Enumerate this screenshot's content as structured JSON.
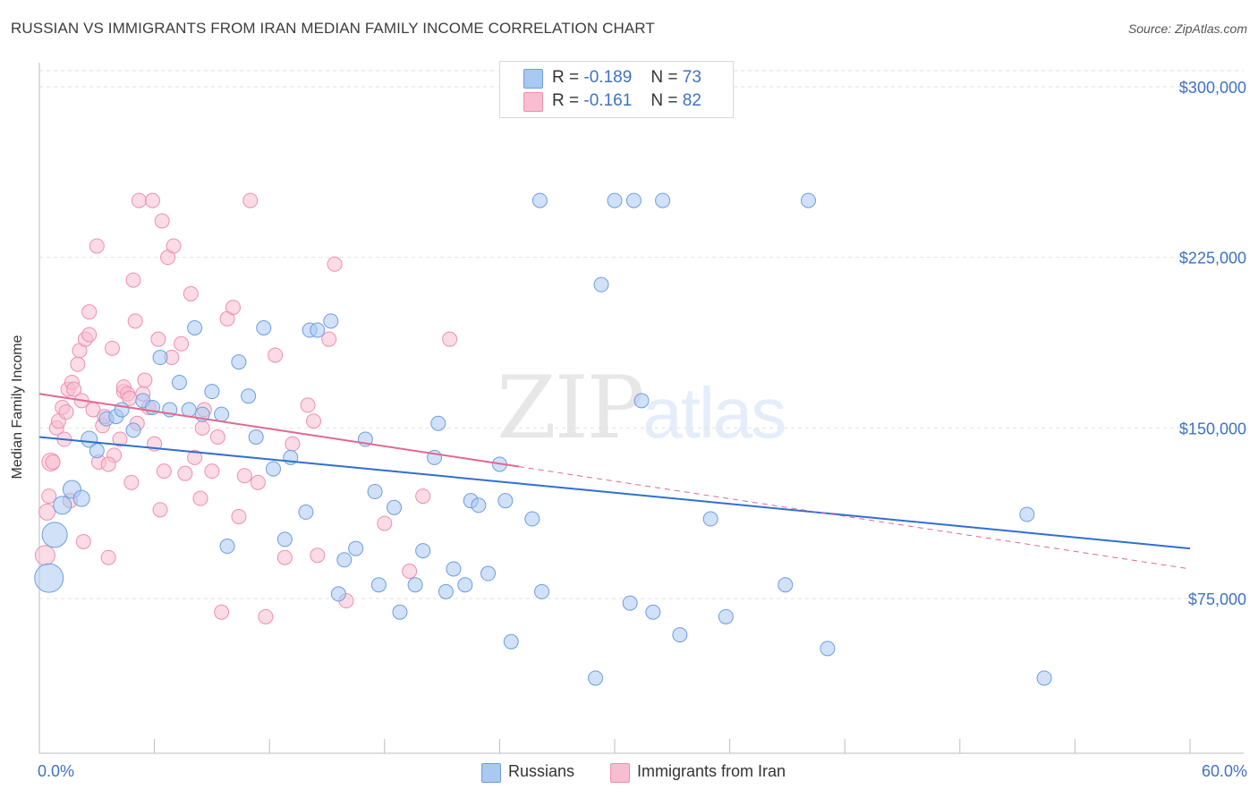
{
  "title": "RUSSIAN VS IMMIGRANTS FROM IRAN MEDIAN FAMILY INCOME CORRELATION CHART",
  "source": "Source: ZipAtlas.com",
  "watermark": {
    "zip": "ZIP",
    "atlas": "atlas"
  },
  "legend_top": [
    {
      "r_label": "R =",
      "r_value": "-0.189",
      "n_label": "N =",
      "n_value": "73"
    },
    {
      "r_label": "R =",
      "r_value": "-0.161",
      "n_label": "N =",
      "n_value": "82"
    }
  ],
  "legend_bottom": [
    "Russians",
    "Immigrants from Iran"
  ],
  "x_axis_labels": {
    "min": "0.0%",
    "max": "60.0%"
  },
  "colors": {
    "russians_fill": "#a9c8f2",
    "russians_stroke": "#6d9ee0",
    "russians_line": "#2f6fd0",
    "iran_fill": "#f8bdd0",
    "iran_stroke": "#ee8fb0",
    "iran_line": "#e3678f",
    "tick_label": "#3f72c3",
    "grid": "#e2e2e2"
  },
  "chart_data": {
    "type": "scatter",
    "title": "RUSSIAN VS IMMIGRANTS FROM IRAN MEDIAN FAMILY INCOME CORRELATION CHART",
    "xlabel": "",
    "ylabel": "Median Family Income",
    "xlim": [
      0,
      60
    ],
    "ylim": [
      10000,
      310000
    ],
    "yticks": [
      75000,
      150000,
      225000,
      300000
    ],
    "ytick_labels": [
      "$75,000",
      "$150,000",
      "$225,000",
      "$300,000"
    ],
    "series": [
      {
        "name": "Russians",
        "r": -0.189,
        "n": 73,
        "trend": {
          "x0": 0,
          "y0": 146000,
          "x1": 60,
          "y1": 97000
        },
        "points": [
          [
            0.5,
            84000,
            16
          ],
          [
            0.8,
            103000,
            14
          ],
          [
            1.2,
            116000,
            10
          ],
          [
            1.7,
            123000,
            10
          ],
          [
            2.2,
            119000,
            9
          ],
          [
            2.6,
            145000,
            9
          ],
          [
            3.0,
            140000,
            8
          ],
          [
            3.5,
            154000,
            8
          ],
          [
            4.0,
            155000,
            8
          ],
          [
            4.3,
            158000,
            8
          ],
          [
            4.9,
            149000,
            8
          ],
          [
            5.4,
            162000,
            8
          ],
          [
            5.9,
            159000,
            8
          ],
          [
            6.3,
            181000,
            8
          ],
          [
            6.8,
            158000,
            8
          ],
          [
            7.3,
            170000,
            8
          ],
          [
            7.8,
            158000,
            8
          ],
          [
            8.1,
            194000,
            8
          ],
          [
            8.5,
            156000,
            8
          ],
          [
            9.0,
            166000,
            8
          ],
          [
            9.5,
            156000,
            8
          ],
          [
            9.8,
            98000,
            8
          ],
          [
            10.4,
            179000,
            8
          ],
          [
            10.9,
            164000,
            8
          ],
          [
            11.3,
            146000,
            8
          ],
          [
            11.7,
            194000,
            8
          ],
          [
            12.2,
            132000,
            8
          ],
          [
            12.8,
            101000,
            8
          ],
          [
            13.1,
            137000,
            8
          ],
          [
            13.9,
            113000,
            8
          ],
          [
            14.1,
            193000,
            8
          ],
          [
            14.5,
            193000,
            8
          ],
          [
            15.2,
            197000,
            8
          ],
          [
            15.6,
            77000,
            8
          ],
          [
            15.9,
            92000,
            8
          ],
          [
            16.5,
            97000,
            8
          ],
          [
            17.0,
            145000,
            8
          ],
          [
            17.5,
            122000,
            8
          ],
          [
            17.7,
            81000,
            8
          ],
          [
            18.5,
            115000,
            8
          ],
          [
            18.8,
            69000,
            8
          ],
          [
            19.6,
            81000,
            8
          ],
          [
            20.0,
            96000,
            8
          ],
          [
            20.6,
            137000,
            8
          ],
          [
            20.8,
            152000,
            8
          ],
          [
            21.2,
            78000,
            8
          ],
          [
            21.6,
            88000,
            8
          ],
          [
            22.2,
            81000,
            8
          ],
          [
            22.5,
            118000,
            8
          ],
          [
            22.9,
            116000,
            8
          ],
          [
            23.4,
            86000,
            8
          ],
          [
            24.0,
            134000,
            8
          ],
          [
            24.3,
            118000,
            8
          ],
          [
            24.6,
            56000,
            8
          ],
          [
            25.7,
            110000,
            8
          ],
          [
            26.1,
            250000,
            8
          ],
          [
            26.2,
            78000,
            8
          ],
          [
            29.0,
            40000,
            8
          ],
          [
            29.3,
            213000,
            8
          ],
          [
            30.0,
            250000,
            8
          ],
          [
            30.8,
            73000,
            8
          ],
          [
            31.0,
            250000,
            8
          ],
          [
            31.4,
            162000,
            8
          ],
          [
            32.0,
            69000,
            8
          ],
          [
            32.5,
            250000,
            8
          ],
          [
            33.4,
            59000,
            8
          ],
          [
            35.0,
            110000,
            8
          ],
          [
            35.8,
            67000,
            8
          ],
          [
            38.9,
            81000,
            8
          ],
          [
            40.1,
            250000,
            8
          ],
          [
            41.1,
            53000,
            8
          ],
          [
            51.5,
            112000,
            8
          ],
          [
            52.4,
            40000,
            8
          ]
        ]
      },
      {
        "name": "Immigrants from Iran",
        "r": -0.161,
        "n": 82,
        "trend": {
          "x0": 0,
          "y0": 165000,
          "x1": 25,
          "y1": 133000,
          "dash_x1": 60,
          "dash_y1": 88000
        },
        "points": [
          [
            0.3,
            94000,
            11
          ],
          [
            0.4,
            113000,
            9
          ],
          [
            0.5,
            120000,
            8
          ],
          [
            0.6,
            135000,
            10
          ],
          [
            0.7,
            135000,
            8
          ],
          [
            0.9,
            150000,
            8
          ],
          [
            1.0,
            153000,
            8
          ],
          [
            1.2,
            159000,
            8
          ],
          [
            1.3,
            145000,
            8
          ],
          [
            1.4,
            157000,
            8
          ],
          [
            1.5,
            167000,
            8
          ],
          [
            1.7,
            170000,
            8
          ],
          [
            1.8,
            167000,
            8
          ],
          [
            2.0,
            178000,
            8
          ],
          [
            2.1,
            184000,
            8
          ],
          [
            2.2,
            162000,
            8
          ],
          [
            2.4,
            189000,
            8
          ],
          [
            2.6,
            201000,
            8
          ],
          [
            2.6,
            191000,
            8
          ],
          [
            2.8,
            158000,
            8
          ],
          [
            3.0,
            230000,
            8
          ],
          [
            3.1,
            135000,
            8
          ],
          [
            3.3,
            151000,
            8
          ],
          [
            3.4,
            155000,
            8
          ],
          [
            3.6,
            93000,
            8
          ],
          [
            3.8,
            185000,
            8
          ],
          [
            3.9,
            138000,
            8
          ],
          [
            4.2,
            145000,
            8
          ],
          [
            4.4,
            166000,
            8
          ],
          [
            4.4,
            168000,
            8
          ],
          [
            4.6,
            165000,
            8
          ],
          [
            4.7,
            163000,
            8
          ],
          [
            4.8,
            126000,
            8
          ],
          [
            4.9,
            215000,
            8
          ],
          [
            5.0,
            197000,
            8
          ],
          [
            5.2,
            250000,
            8
          ],
          [
            5.4,
            165000,
            8
          ],
          [
            5.5,
            171000,
            8
          ],
          [
            5.7,
            159000,
            8
          ],
          [
            5.9,
            250000,
            8
          ],
          [
            6.0,
            143000,
            8
          ],
          [
            6.2,
            189000,
            8
          ],
          [
            6.3,
            114000,
            8
          ],
          [
            6.4,
            241000,
            8
          ],
          [
            6.5,
            131000,
            8
          ],
          [
            6.7,
            225000,
            8
          ],
          [
            6.9,
            181000,
            8
          ],
          [
            7.0,
            230000,
            8
          ],
          [
            7.4,
            187000,
            8
          ],
          [
            7.6,
            130000,
            8
          ],
          [
            7.9,
            209000,
            8
          ],
          [
            8.1,
            137000,
            8
          ],
          [
            8.4,
            119000,
            8
          ],
          [
            8.5,
            150000,
            8
          ],
          [
            8.6,
            158000,
            8
          ],
          [
            9.0,
            131000,
            8
          ],
          [
            9.3,
            146000,
            8
          ],
          [
            9.5,
            69000,
            8
          ],
          [
            9.8,
            198000,
            8
          ],
          [
            10.1,
            203000,
            8
          ],
          [
            10.4,
            111000,
            8
          ],
          [
            10.7,
            129000,
            8
          ],
          [
            11.0,
            250000,
            8
          ],
          [
            11.4,
            126000,
            8
          ],
          [
            11.8,
            67000,
            8
          ],
          [
            12.3,
            182000,
            8
          ],
          [
            12.8,
            93000,
            8
          ],
          [
            13.2,
            143000,
            8
          ],
          [
            14.0,
            160000,
            8
          ],
          [
            14.3,
            153000,
            8
          ],
          [
            14.5,
            94000,
            8
          ],
          [
            15.1,
            189000,
            8
          ],
          [
            15.4,
            222000,
            8
          ],
          [
            16.0,
            74000,
            8
          ],
          [
            18.0,
            108000,
            8
          ],
          [
            19.3,
            87000,
            8
          ],
          [
            20.0,
            120000,
            8
          ],
          [
            21.4,
            189000,
            8
          ],
          [
            3.6,
            134000,
            8
          ],
          [
            2.3,
            100000,
            8
          ],
          [
            1.6,
            118000,
            8
          ],
          [
            5.1,
            152000,
            8
          ]
        ]
      }
    ]
  }
}
